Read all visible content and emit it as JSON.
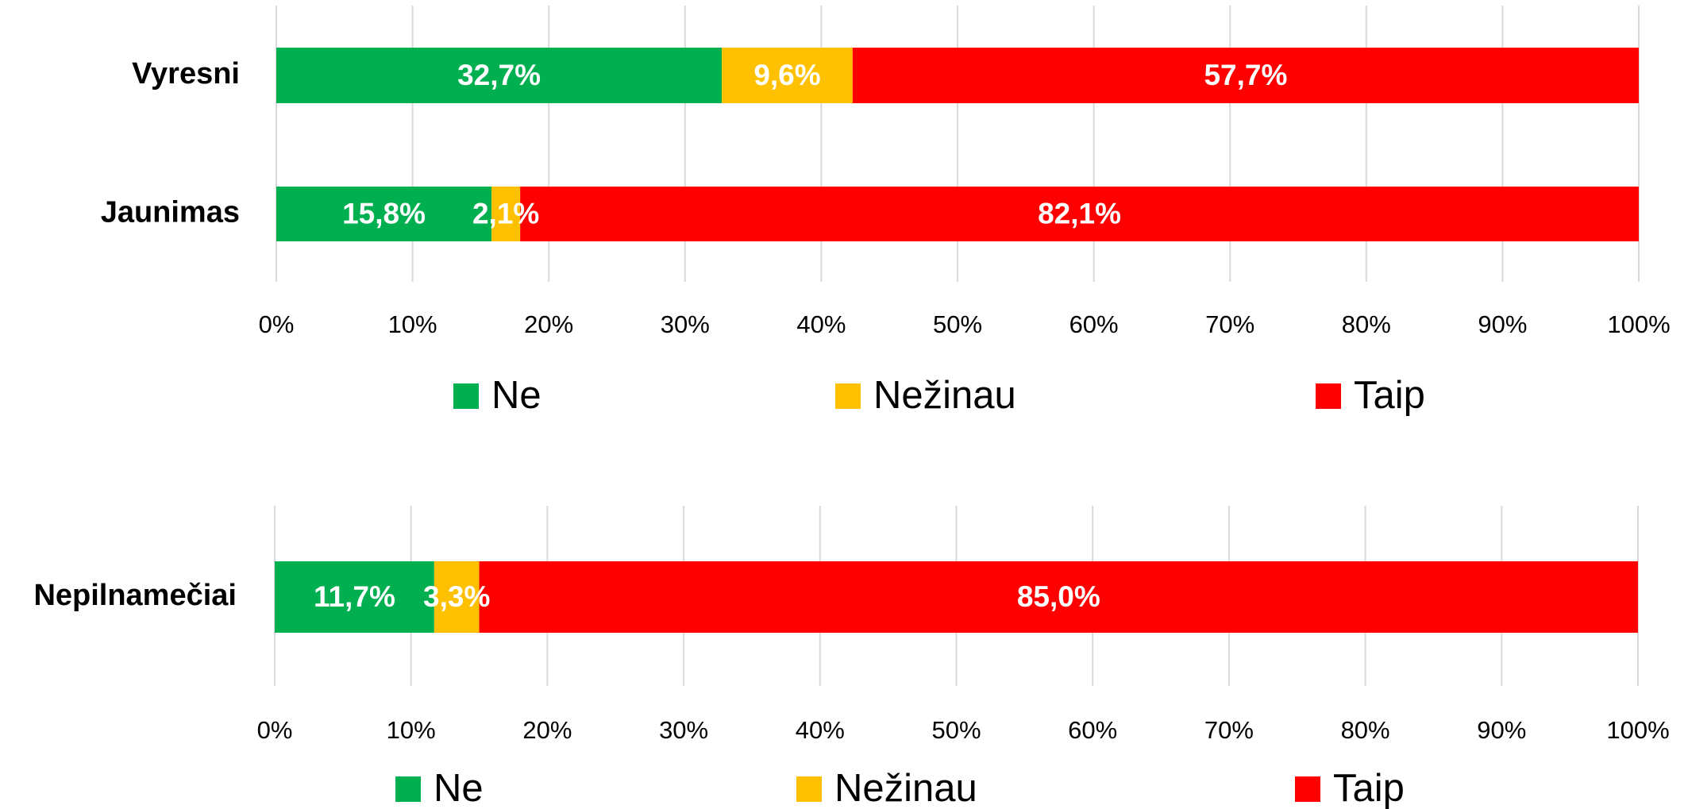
{
  "chart_data": [
    {
      "type": "bar",
      "orientation": "horizontal",
      "stacked": true,
      "categories": [
        "Vyresni",
        "Jaunimas"
      ],
      "series": [
        {
          "name": "Ne",
          "color": "#00b050",
          "values": [
            32.7,
            15.8
          ],
          "value_labels": [
            "32,7%",
            "15,8%"
          ]
        },
        {
          "name": "Nežinau",
          "color": "#ffc000",
          "values": [
            9.6,
            2.1
          ],
          "value_labels": [
            "9,6%",
            "2,1%"
          ]
        },
        {
          "name": "Taip",
          "color": "#ff0000",
          "values": [
            57.7,
            82.1
          ],
          "value_labels": [
            "57,7%",
            "82,1%"
          ]
        }
      ],
      "xlim": [
        0,
        100
      ],
      "xticks": [
        {
          "value": 0,
          "label": "0%"
        },
        {
          "value": 10,
          "label": "10%"
        },
        {
          "value": 20,
          "label": "20%"
        },
        {
          "value": 30,
          "label": "30%"
        },
        {
          "value": 40,
          "label": "40%"
        },
        {
          "value": 50,
          "label": "50%"
        },
        {
          "value": 60,
          "label": "60%"
        },
        {
          "value": 70,
          "label": "70%"
        },
        {
          "value": 80,
          "label": "80%"
        },
        {
          "value": 90,
          "label": "90%"
        },
        {
          "value": 100,
          "label": "100%"
        }
      ],
      "grid": true,
      "legend": "bottom"
    },
    {
      "type": "bar",
      "orientation": "horizontal",
      "stacked": true,
      "categories": [
        "Nepilnamečiai"
      ],
      "series": [
        {
          "name": "Ne",
          "color": "#00b050",
          "values": [
            11.7
          ],
          "value_labels": [
            "11,7%"
          ]
        },
        {
          "name": "Nežinau",
          "color": "#ffc000",
          "values": [
            3.3
          ],
          "value_labels": [
            "3,3%"
          ]
        },
        {
          "name": "Taip",
          "color": "#ff0000",
          "values": [
            85.0
          ],
          "value_labels": [
            "85,0%"
          ]
        }
      ],
      "xlim": [
        0,
        100
      ],
      "xticks": [
        {
          "value": 0,
          "label": "0%"
        },
        {
          "value": 10,
          "label": "10%"
        },
        {
          "value": 20,
          "label": "20%"
        },
        {
          "value": 30,
          "label": "30%"
        },
        {
          "value": 40,
          "label": "40%"
        },
        {
          "value": 50,
          "label": "50%"
        },
        {
          "value": 60,
          "label": "60%"
        },
        {
          "value": 70,
          "label": "70%"
        },
        {
          "value": 80,
          "label": "80%"
        },
        {
          "value": 90,
          "label": "90%"
        },
        {
          "value": 100,
          "label": "100%"
        }
      ],
      "grid": true,
      "legend": "bottom"
    }
  ]
}
